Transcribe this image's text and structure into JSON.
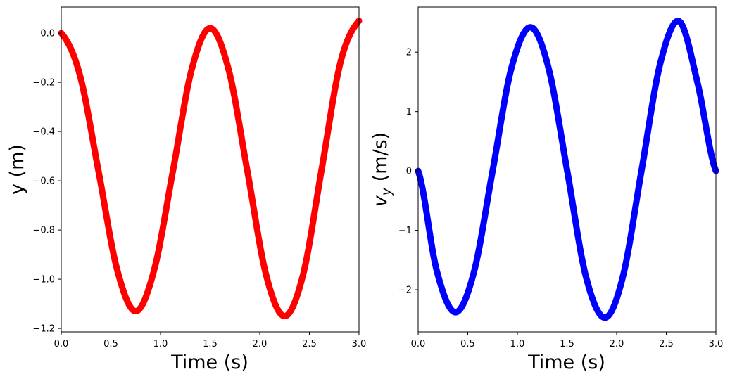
{
  "chart_data": [
    {
      "type": "line",
      "title": "",
      "xlabel": "Time (s)",
      "ylabel": "y (m)",
      "xlim": [
        0.0,
        3.0
      ],
      "ylim": [
        -1.214,
        0.106
      ],
      "xticks": [
        "0.0",
        "0.5",
        "1.0",
        "1.5",
        "2.0",
        "2.5",
        "3.0"
      ],
      "yticks": [
        "0.0",
        "−0.2",
        "−0.4",
        "−0.6",
        "−0.8",
        "−1.0",
        "−1.2"
      ],
      "ytick_values": [
        0.0,
        -0.2,
        -0.4,
        -0.6,
        -0.8,
        -1.0,
        -1.2
      ],
      "grid": false,
      "legend": null,
      "series": [
        {
          "name": "y",
          "color": "#ff0000",
          "x": [
            0.0,
            0.1875,
            0.375,
            0.5625,
            0.75,
            0.9375,
            1.125,
            1.3125,
            1.5,
            1.6875,
            1.875,
            2.0625,
            2.25,
            2.4375,
            2.625,
            2.8125,
            3.0
          ],
          "values": [
            0.0,
            -0.17,
            -0.56,
            -0.96,
            -1.13,
            -0.96,
            -0.56,
            -0.15,
            0.02,
            -0.15,
            -0.56,
            -0.98,
            -1.15,
            -0.98,
            -0.55,
            -0.12,
            0.05
          ]
        }
      ]
    },
    {
      "type": "line",
      "title": "",
      "xlabel": "Time (s)",
      "ylabel": "v_y (m/s)",
      "xlim": [
        0.0,
        3.0
      ],
      "ylim": [
        -2.71,
        2.76
      ],
      "xticks": [
        "0.0",
        "0.5",
        "1.0",
        "1.5",
        "2.0",
        "2.5",
        "3.0"
      ],
      "yticks": [
        "2",
        "1",
        "0",
        "−1",
        "−2"
      ],
      "ytick_values": [
        2,
        1,
        0,
        -1,
        -2
      ],
      "grid": false,
      "legend": null,
      "series": [
        {
          "name": "v_y",
          "color": "#0000ff",
          "x": [
            0.0,
            0.1875,
            0.375,
            0.5625,
            0.75,
            0.9375,
            1.13,
            1.3125,
            1.5,
            1.6875,
            1.88,
            2.0625,
            2.25,
            2.4375,
            2.63,
            2.8125,
            3.0
          ],
          "values": [
            0.0,
            -1.68,
            -2.38,
            -1.7,
            0.0,
            1.72,
            2.42,
            1.74,
            0.02,
            -1.76,
            -2.47,
            -1.78,
            0.0,
            1.8,
            2.52,
            1.5,
            0.0
          ]
        }
      ]
    }
  ],
  "left_plot": {
    "xlabel": "Time (s)",
    "ylabel": "y (m)",
    "line_color": "#ff0000"
  },
  "right_plot": {
    "xlabel": "Time (s)",
    "ylabel_main": "v",
    "ylabel_sub": "y",
    "ylabel_units": " (m/s)",
    "line_color": "#0000ff"
  }
}
